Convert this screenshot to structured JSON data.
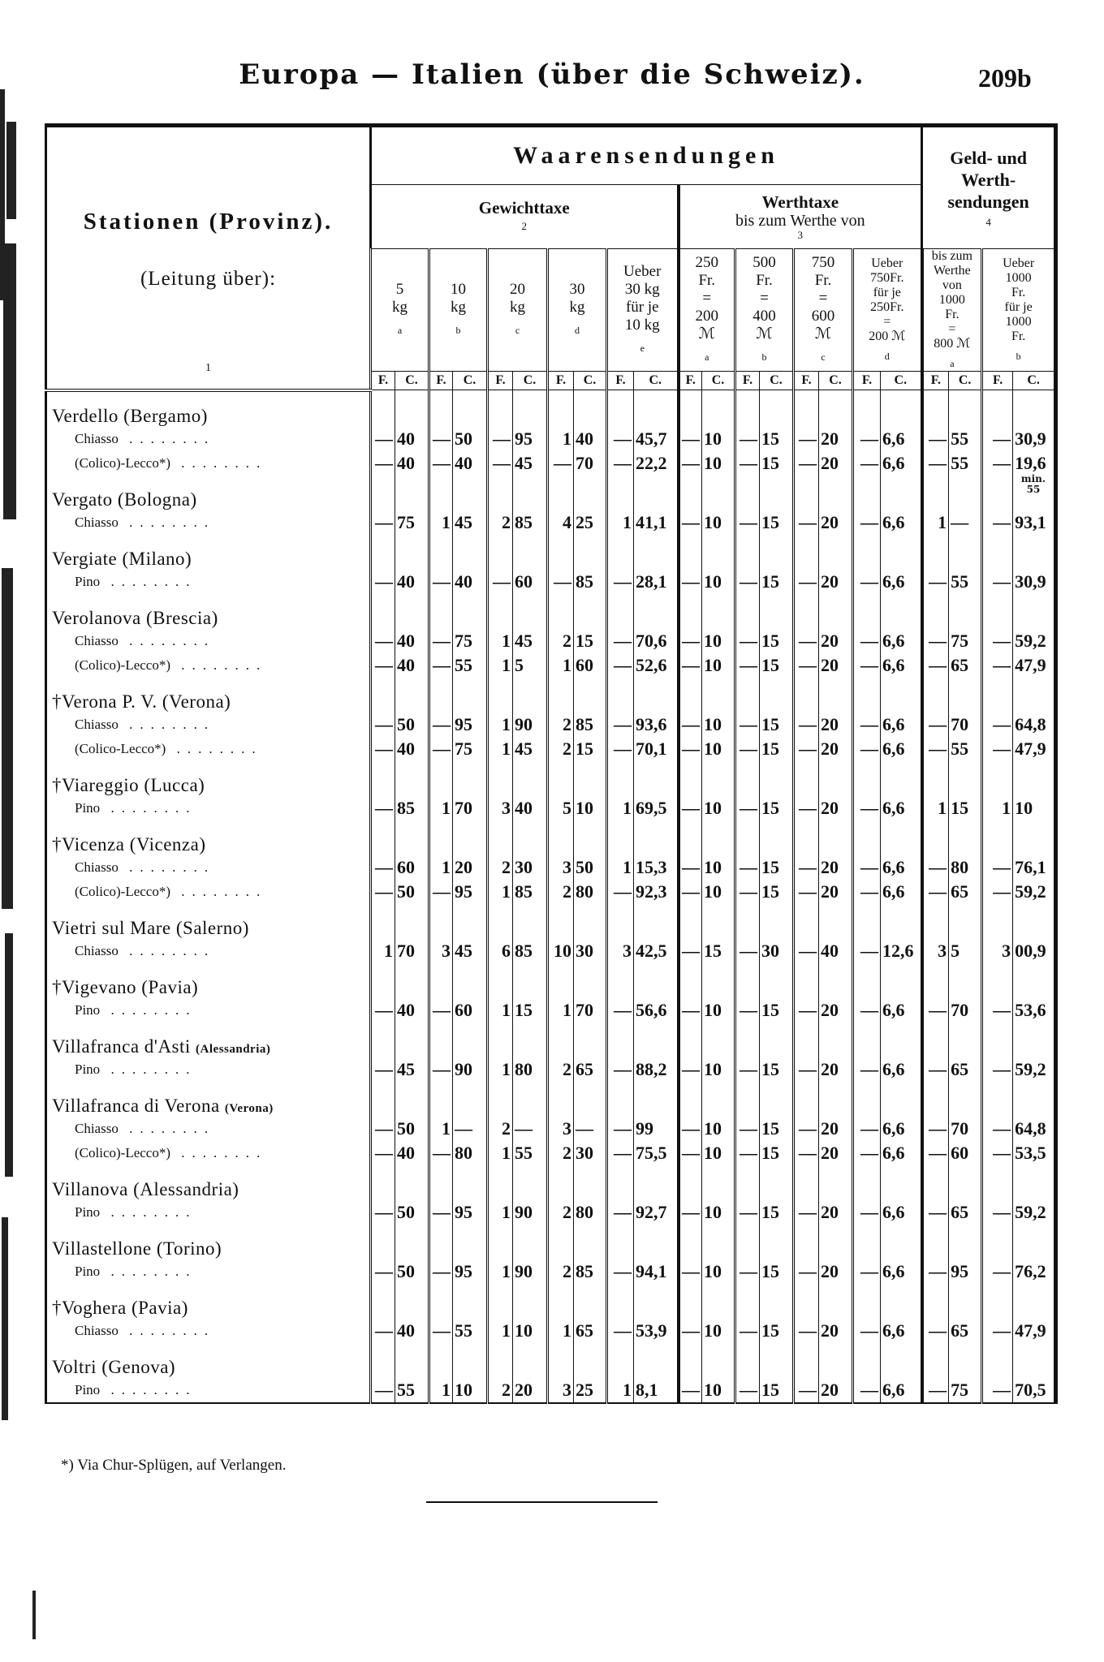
{
  "header": {
    "title": "Europa — Italien (über die Schweiz).",
    "page_number": "209b"
  },
  "table": {
    "station_header": {
      "title": "Stationen (Provinz).",
      "subtitle": "(Leitung über):",
      "number": "1"
    },
    "group_main": "Waarensendungen",
    "group_gewicht": {
      "title": "Gewichttaxe",
      "number": "2"
    },
    "group_werth": {
      "title": "Werthtaxe",
      "subtitle": "bis zum Werthe von",
      "number": "3"
    },
    "group_geld": {
      "lines": [
        "Geld- und",
        "Werth-",
        "sendungen"
      ],
      "number": "4"
    },
    "columns": [
      {
        "lines": [
          "5",
          "kg"
        ],
        "letter": "a"
      },
      {
        "lines": [
          "10",
          "kg"
        ],
        "letter": "b"
      },
      {
        "lines": [
          "20",
          "kg"
        ],
        "letter": "c"
      },
      {
        "lines": [
          "30",
          "kg"
        ],
        "letter": "d"
      },
      {
        "lines": [
          "Ueber",
          "30 kg",
          "für je",
          "10 kg"
        ],
        "letter": "e"
      },
      {
        "lines": [
          "250",
          "Fr.",
          "=",
          "200",
          "ℳ"
        ],
        "letter": "a"
      },
      {
        "lines": [
          "500",
          "Fr.",
          "=",
          "400",
          "ℳ"
        ],
        "letter": "b"
      },
      {
        "lines": [
          "750",
          "Fr.",
          "=",
          "600",
          "ℳ"
        ],
        "letter": "c"
      },
      {
        "lines": [
          "Ueber",
          "750Fr.",
          "für je",
          "250Fr.",
          "=",
          "200 ℳ"
        ],
        "letter": "d"
      },
      {
        "lines": [
          "bis zum",
          "Werthe",
          "von",
          "1000",
          "Fr.",
          "=",
          "800 ℳ"
        ],
        "letter": "a"
      },
      {
        "lines": [
          "Ueber",
          "1000",
          "Fr.",
          "für je",
          "1000",
          "Fr."
        ],
        "letter": "b"
      }
    ],
    "unit_f": "F.",
    "unit_c": "C.",
    "stations": [
      {
        "name": "Verdello (Bergamo)",
        "routes": [
          {
            "via": "Chiasso",
            "values": [
              "—",
              "40",
              "—",
              "50",
              "—",
              "95",
              "1",
              "40",
              "—",
              "45,7",
              "—",
              "10",
              "—",
              "15",
              "—",
              "20",
              "—",
              "6,6",
              "—",
              "55",
              "—",
              "30,9"
            ]
          },
          {
            "via": "(Colico)-Lecco*)",
            "values": [
              "—",
              "40",
              "—",
              "40",
              "—",
              "45",
              "—",
              "70",
              "—",
              "22,2",
              "—",
              "10",
              "—",
              "15",
              "—",
              "20",
              "—",
              "6,6",
              "—",
              "55",
              "—",
              "19,6"
            ],
            "note": "min. 55"
          }
        ]
      },
      {
        "name": "Vergato (Bologna)",
        "routes": [
          {
            "via": "Chiasso",
            "values": [
              "—",
              "75",
              "1",
              "45",
              "2",
              "85",
              "4",
              "25",
              "1",
              "41,1",
              "—",
              "10",
              "—",
              "15",
              "—",
              "20",
              "—",
              "6,6",
              "1",
              "—",
              "—",
              "93,1"
            ]
          }
        ]
      },
      {
        "name": "Vergiate (Milano)",
        "routes": [
          {
            "via": "Pino",
            "values": [
              "—",
              "40",
              "—",
              "40",
              "—",
              "60",
              "—",
              "85",
              "—",
              "28,1",
              "—",
              "10",
              "—",
              "15",
              "—",
              "20",
              "—",
              "6,6",
              "—",
              "55",
              "—",
              "30,9"
            ]
          }
        ]
      },
      {
        "name": "Verolanova (Brescia)",
        "routes": [
          {
            "via": "Chiasso",
            "values": [
              "—",
              "40",
              "—",
              "75",
              "1",
              "45",
              "2",
              "15",
              "—",
              "70,6",
              "—",
              "10",
              "—",
              "15",
              "—",
              "20",
              "—",
              "6,6",
              "—",
              "75",
              "—",
              "59,2"
            ]
          },
          {
            "via": "(Colico)-Lecco*)",
            "values": [
              "—",
              "40",
              "—",
              "55",
              "1",
              "5",
              "1",
              "60",
              "—",
              "52,6",
              "—",
              "10",
              "—",
              "15",
              "—",
              "20",
              "—",
              "6,6",
              "—",
              "65",
              "—",
              "47,9"
            ]
          }
        ]
      },
      {
        "name": "†Verona P. V. (Verona)",
        "routes": [
          {
            "via": "Chiasso",
            "values": [
              "—",
              "50",
              "—",
              "95",
              "1",
              "90",
              "2",
              "85",
              "—",
              "93,6",
              "—",
              "10",
              "—",
              "15",
              "—",
              "20",
              "—",
              "6,6",
              "—",
              "70",
              "—",
              "64,8"
            ]
          },
          {
            "via": "(Colico-Lecco*)",
            "values": [
              "—",
              "40",
              "—",
              "75",
              "1",
              "45",
              "2",
              "15",
              "—",
              "70,1",
              "—",
              "10",
              "—",
              "15",
              "—",
              "20",
              "—",
              "6,6",
              "—",
              "55",
              "—",
              "47,9"
            ]
          }
        ]
      },
      {
        "name": "†Viareggio (Lucca)",
        "routes": [
          {
            "via": "Pino",
            "values": [
              "—",
              "85",
              "1",
              "70",
              "3",
              "40",
              "5",
              "10",
              "1",
              "69,5",
              "—",
              "10",
              "—",
              "15",
              "—",
              "20",
              "—",
              "6,6",
              "1",
              "15",
              "1",
              "10"
            ]
          }
        ]
      },
      {
        "name": "†Vicenza (Vicenza)",
        "routes": [
          {
            "via": "Chiasso",
            "values": [
              "—",
              "60",
              "1",
              "20",
              "2",
              "30",
              "3",
              "50",
              "1",
              "15,3",
              "—",
              "10",
              "—",
              "15",
              "—",
              "20",
              "—",
              "6,6",
              "—",
              "80",
              "—",
              "76,1"
            ]
          },
          {
            "via": "(Colico)-Lecco*)",
            "values": [
              "—",
              "50",
              "—",
              "95",
              "1",
              "85",
              "2",
              "80",
              "—",
              "92,3",
              "—",
              "10",
              "—",
              "15",
              "—",
              "20",
              "—",
              "6,6",
              "—",
              "65",
              "—",
              "59,2"
            ]
          }
        ]
      },
      {
        "name": "Vietri sul Mare (Salerno)",
        "routes": [
          {
            "via": "Chiasso",
            "values": [
              "1",
              "70",
              "3",
              "45",
              "6",
              "85",
              "10",
              "30",
              "3",
              "42,5",
              "—",
              "15",
              "—",
              "30",
              "—",
              "40",
              "—",
              "12,6",
              "3",
              "5",
              "3",
              "00,9"
            ]
          }
        ]
      },
      {
        "name": "†Vigevano (Pavia)",
        "routes": [
          {
            "via": "Pino",
            "values": [
              "—",
              "40",
              "—",
              "60",
              "1",
              "15",
              "1",
              "70",
              "—",
              "56,6",
              "—",
              "10",
              "—",
              "15",
              "—",
              "20",
              "—",
              "6,6",
              "—",
              "70",
              "—",
              "53,6"
            ]
          }
        ]
      },
      {
        "name": "Villafranca d'Asti",
        "province_small": "(Alessandria)",
        "routes": [
          {
            "via": "Pino",
            "values": [
              "—",
              "45",
              "—",
              "90",
              "1",
              "80",
              "2",
              "65",
              "—",
              "88,2",
              "—",
              "10",
              "—",
              "15",
              "—",
              "20",
              "—",
              "6,6",
              "—",
              "65",
              "—",
              "59,2"
            ]
          }
        ]
      },
      {
        "name": "Villafranca di Verona",
        "province_small": "(Verona)",
        "routes": [
          {
            "via": "Chiasso",
            "values": [
              "—",
              "50",
              "1",
              "—",
              "2",
              "—",
              "3",
              "—",
              "—",
              "99",
              "—",
              "10",
              "—",
              "15",
              "—",
              "20",
              "—",
              "6,6",
              "—",
              "70",
              "—",
              "64,8"
            ]
          },
          {
            "via": "(Colico)-Lecco*)",
            "values": [
              "—",
              "40",
              "—",
              "80",
              "1",
              "55",
              "2",
              "30",
              "—",
              "75,5",
              "—",
              "10",
              "—",
              "15",
              "—",
              "20",
              "—",
              "6,6",
              "—",
              "60",
              "—",
              "53,5"
            ]
          }
        ]
      },
      {
        "name": "Villanova (Alessandria)",
        "routes": [
          {
            "via": "Pino",
            "values": [
              "—",
              "50",
              "—",
              "95",
              "1",
              "90",
              "2",
              "80",
              "—",
              "92,7",
              "—",
              "10",
              "—",
              "15",
              "—",
              "20",
              "—",
              "6,6",
              "—",
              "65",
              "—",
              "59,2"
            ]
          }
        ]
      },
      {
        "name": "Villastellone (Torino)",
        "routes": [
          {
            "via": "Pino",
            "values": [
              "—",
              "50",
              "—",
              "95",
              "1",
              "90",
              "2",
              "85",
              "—",
              "94,1",
              "—",
              "10",
              "—",
              "15",
              "—",
              "20",
              "—",
              "6,6",
              "—",
              "95",
              "—",
              "76,2"
            ]
          }
        ]
      },
      {
        "name": "†Voghera (Pavia)",
        "routes": [
          {
            "via": "Chiasso",
            "values": [
              "—",
              "40",
              "—",
              "55",
              "1",
              "10",
              "1",
              "65",
              "—",
              "53,9",
              "—",
              "10",
              "—",
              "15",
              "—",
              "20",
              "—",
              "6,6",
              "—",
              "65",
              "—",
              "47,9"
            ]
          }
        ]
      },
      {
        "name": "Voltri (Genova)",
        "routes": [
          {
            "via": "Pino",
            "values": [
              "—",
              "55",
              "1",
              "10",
              "2",
              "20",
              "3",
              "25",
              "1",
              "8,1",
              "—",
              "10",
              "—",
              "15",
              "—",
              "20",
              "—",
              "6,6",
              "—",
              "75",
              "—",
              "70,5"
            ]
          }
        ]
      }
    ]
  },
  "footnote": "*) Via Chur-Splügen, auf Verlangen."
}
